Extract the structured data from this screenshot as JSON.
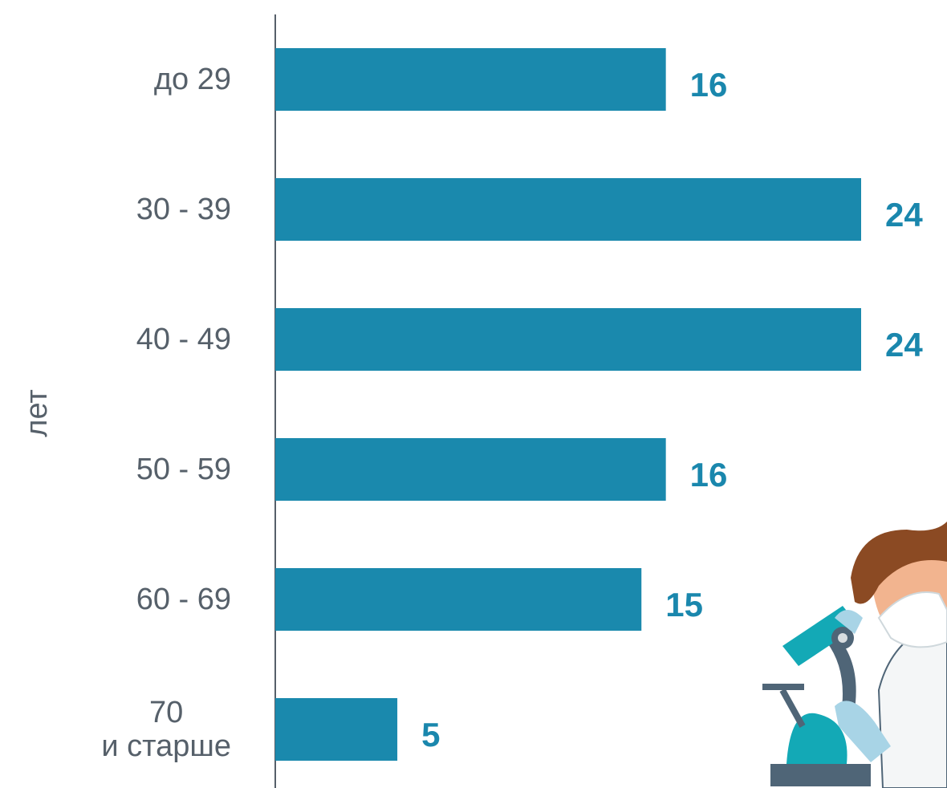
{
  "chart_data": {
    "type": "bar",
    "orientation": "horizontal",
    "axis_label": "лет",
    "categories": [
      "до 29",
      "30 - 39",
      "40 - 49",
      "50 - 59",
      "60 - 69",
      "70\nи старше"
    ],
    "values": [
      16,
      24,
      24,
      16,
      15,
      5
    ],
    "color": "#1a89ad"
  }
}
